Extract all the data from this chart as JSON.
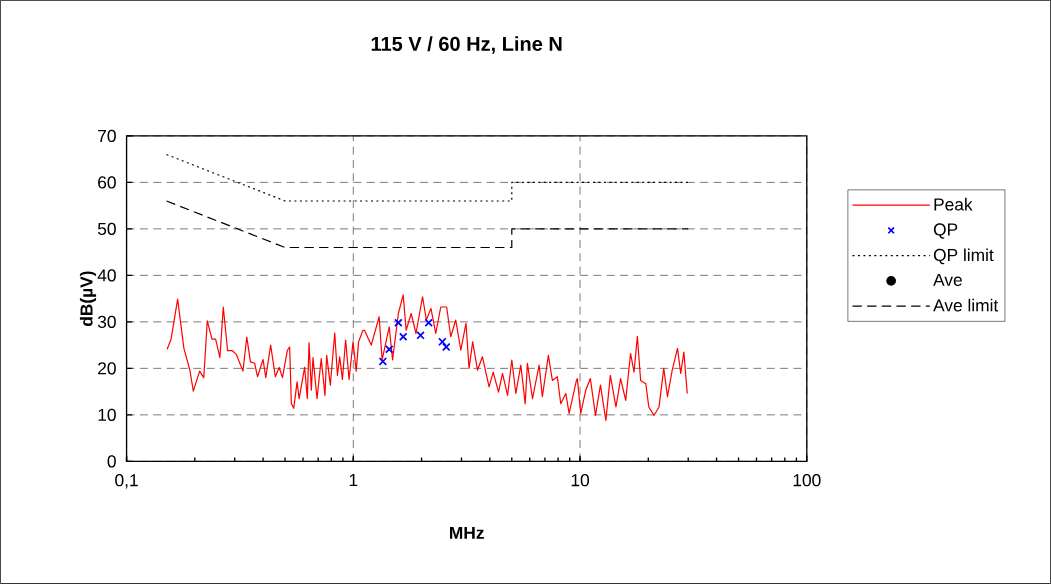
{
  "chart_data": {
    "type": "line",
    "title": "115 V / 60 Hz, Line N",
    "xlabel": "MHz",
    "ylabel": "dB(µV)",
    "log": "x",
    "grid": true,
    "legend": "right",
    "xlim": [
      0.1,
      100
    ],
    "ylim": [
      0,
      70
    ],
    "xticks": [
      {
        "value": 0.1,
        "label": "0,1"
      },
      1,
      10,
      100
    ],
    "yticks": [
      0,
      10,
      20,
      30,
      40,
      50,
      60,
      70
    ],
    "series": [
      {
        "name": "Peak",
        "color": "#ff0000",
        "line_style": "solid",
        "marker": "none",
        "x": [
          0.151,
          0.157,
          0.168,
          0.179,
          0.19,
          0.197,
          0.21,
          0.219,
          0.227,
          0.238,
          0.247,
          0.258,
          0.267,
          0.279,
          0.293,
          0.305,
          0.326,
          0.339,
          0.352,
          0.367,
          0.378,
          0.4,
          0.411,
          0.432,
          0.453,
          0.471,
          0.487,
          0.512,
          0.524,
          0.533,
          0.546,
          0.565,
          0.577,
          0.61,
          0.627,
          0.638,
          0.653,
          0.664,
          0.692,
          0.722,
          0.75,
          0.763,
          0.792,
          0.828,
          0.851,
          0.871,
          0.895,
          0.925,
          0.958,
          0.997,
          1.03,
          1.055,
          1.1,
          1.12,
          1.2,
          1.3,
          1.34,
          1.44,
          1.49,
          1.58,
          1.66,
          1.71,
          1.8,
          1.89,
          2.02,
          2.1,
          2.2,
          2.31,
          2.43,
          2.58,
          2.69,
          2.83,
          2.98,
          3.14,
          3.24,
          3.36,
          3.53,
          3.71,
          3.97,
          4.14,
          4.37,
          4.55,
          4.79,
          5.0,
          5.21,
          5.48,
          5.73,
          5.86,
          6.17,
          6.6,
          6.82,
          7.25,
          7.55,
          7.94,
          8.22,
          8.65,
          8.95,
          9.64,
          9.73,
          10.07,
          10.6,
          11.1,
          11.7,
          12.3,
          13.0,
          13.6,
          14.4,
          15.1,
          15.9,
          16.7,
          17.3,
          17.9,
          18.5,
          19.5,
          20.1,
          21.2,
          22.3,
          23.4,
          24.3,
          25.5,
          26.9,
          27.8,
          28.7,
          29.7
        ],
        "values": [
          24.1,
          26.2,
          34.9,
          24.3,
          19.7,
          15.1,
          19.4,
          18.0,
          30.2,
          26.3,
          26.3,
          22.3,
          33.2,
          23.8,
          23.8,
          23.0,
          19.4,
          26.7,
          21.4,
          21.1,
          18.2,
          21.9,
          18.0,
          25.0,
          18.2,
          20.2,
          18.0,
          23.9,
          24.6,
          12.4,
          11.4,
          17.1,
          13.5,
          20.2,
          13.5,
          25.5,
          15.3,
          22.3,
          13.5,
          22.1,
          14.2,
          22.8,
          16.4,
          27.6,
          18.5,
          22.5,
          17.6,
          26.1,
          17.6,
          25.7,
          19.4,
          25.7,
          28.1,
          28.2,
          25.0,
          31.1,
          21.8,
          28.9,
          21.8,
          31.8,
          35.8,
          28.2,
          31.8,
          27.5,
          35.4,
          30.4,
          32.9,
          27.5,
          33.2,
          33.2,
          26.8,
          30.4,
          23.9,
          29.7,
          20.0,
          25.7,
          19.6,
          22.5,
          16.0,
          19.2,
          14.9,
          18.9,
          14.2,
          21.8,
          14.6,
          20.7,
          12.4,
          21.1,
          13.5,
          20.7,
          13.9,
          22.8,
          17.4,
          18.2,
          12.4,
          14.6,
          10.3,
          17.4,
          17.8,
          10.3,
          15.3,
          17.8,
          9.9,
          16.4,
          8.8,
          18.5,
          11.7,
          17.8,
          13.1,
          23.2,
          19.2,
          26.9,
          17.4,
          16.7,
          11.7,
          9.9,
          11.7,
          20.0,
          13.9,
          19.6,
          24.3,
          18.9,
          23.5,
          14.6
        ]
      },
      {
        "name": "QP",
        "type": "scatter",
        "color": "#0000ff",
        "marker": "cross",
        "x": [
          1.35,
          1.44,
          1.58,
          1.66,
          1.98,
          2.15,
          2.47,
          2.57
        ],
        "values": [
          21.5,
          24.1,
          29.8,
          26.8,
          27.1,
          29.8,
          25.7,
          24.6
        ]
      },
      {
        "name": "QP limit",
        "color": "#000000",
        "line_style": "dotted",
        "marker": "none",
        "x": [
          0.15,
          0.5,
          5,
          5,
          30
        ],
        "values": [
          66,
          56,
          56,
          60,
          60
        ]
      },
      {
        "name": "Ave",
        "type": "scatter",
        "color": "#000000",
        "marker": "circle"
      },
      {
        "name": "Ave limit",
        "color": "#000000",
        "line_style": "dashed",
        "marker": "none",
        "x": [
          0.15,
          0.5,
          5,
          5,
          30
        ],
        "values": [
          56,
          46,
          46,
          50,
          50
        ]
      }
    ]
  }
}
